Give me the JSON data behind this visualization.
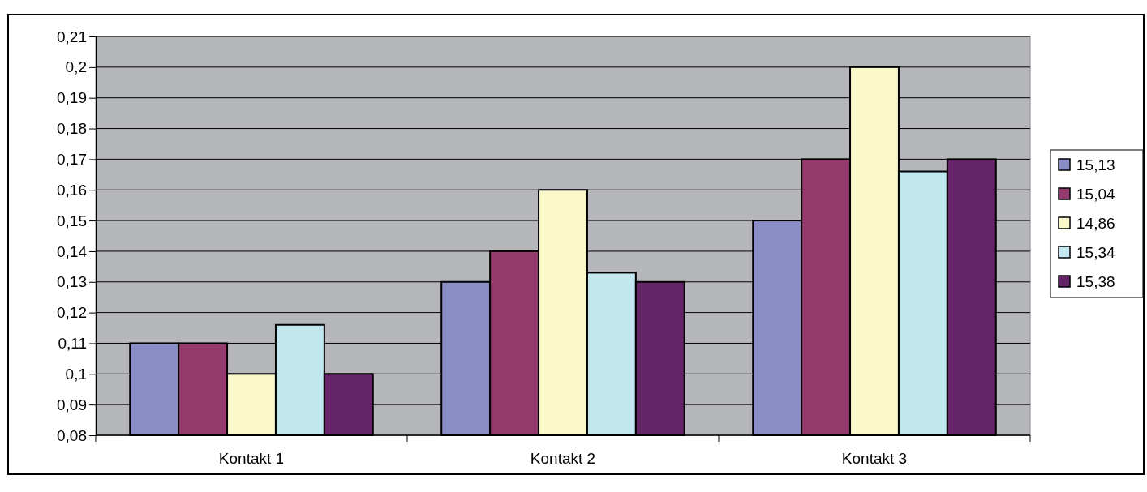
{
  "chart_data": {
    "type": "bar",
    "categories": [
      "Kontakt 1",
      "Kontakt 2",
      "Kontakt 3"
    ],
    "series": [
      {
        "name": "15,13",
        "color": "#8b8ec6",
        "values": [
          0.11,
          0.13,
          0.15
        ]
      },
      {
        "name": "15,04",
        "color": "#943a6c",
        "values": [
          0.11,
          0.14,
          0.17
        ]
      },
      {
        "name": "14,86",
        "color": "#faf7c9",
        "values": [
          0.1,
          0.16,
          0.2
        ]
      },
      {
        "name": "15,34",
        "color": "#c3e7ef",
        "values": [
          0.116,
          0.133,
          0.166
        ]
      },
      {
        "name": "15,38",
        "color": "#652468",
        "values": [
          0.1,
          0.13,
          0.17
        ]
      }
    ],
    "ylim": [
      0.08,
      0.21
    ],
    "yticks": [
      {
        "value": 0.08,
        "label": "0,08"
      },
      {
        "value": 0.09,
        "label": "0,09"
      },
      {
        "value": 0.1,
        "label": "0,1"
      },
      {
        "value": 0.11,
        "label": "0,11"
      },
      {
        "value": 0.12,
        "label": "0,12"
      },
      {
        "value": 0.13,
        "label": "0,13"
      },
      {
        "value": 0.14,
        "label": "0,14"
      },
      {
        "value": 0.15,
        "label": "0,15"
      },
      {
        "value": 0.16,
        "label": "0,16"
      },
      {
        "value": 0.17,
        "label": "0,17"
      },
      {
        "value": 0.18,
        "label": "0,18"
      },
      {
        "value": 0.19,
        "label": "0,19"
      },
      {
        "value": 0.2,
        "label": "0,2"
      },
      {
        "value": 0.21,
        "label": "0,21"
      }
    ],
    "grid": "y",
    "legend": "right"
  }
}
